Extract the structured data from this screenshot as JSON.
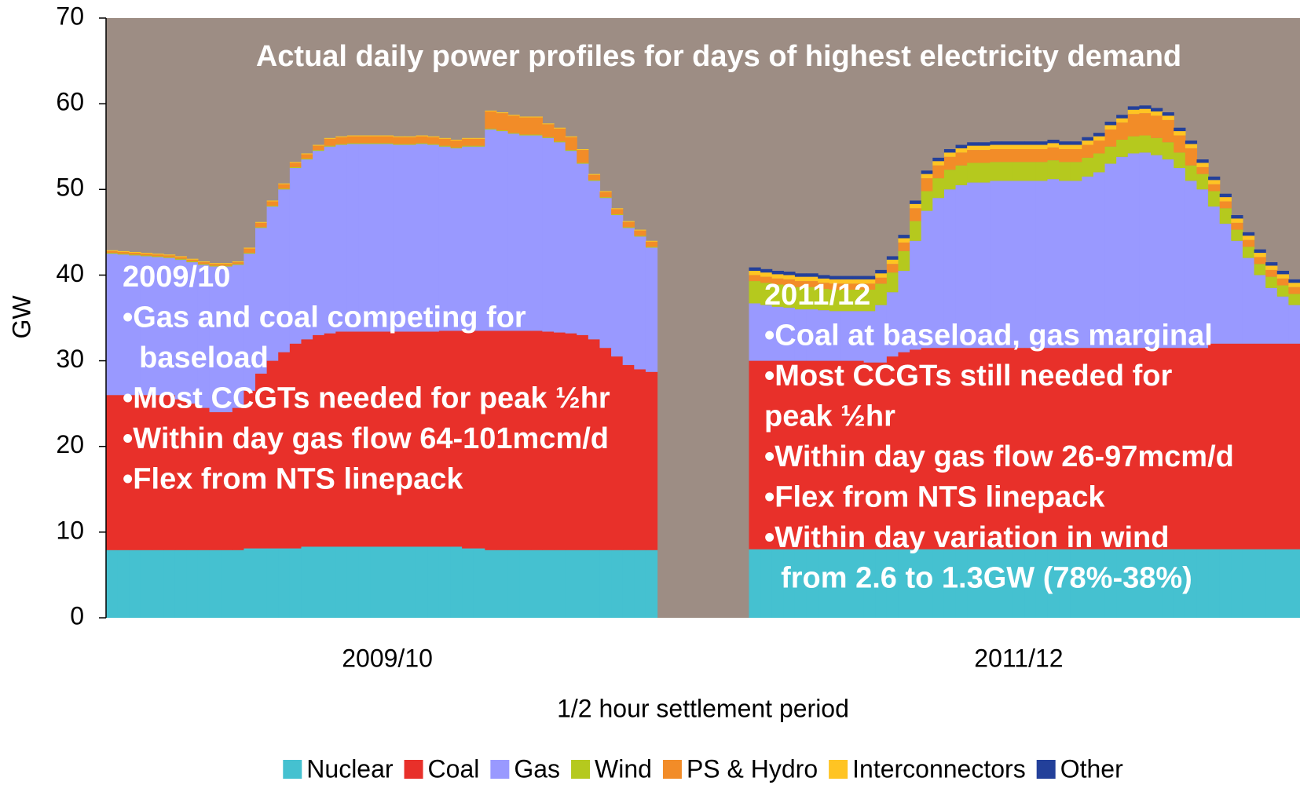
{
  "chart_data": {
    "type": "stacked_bar",
    "title": "Actual daily power profiles for days of highest electricity demand",
    "xlabel": "1/2 hour settlement period",
    "ylabel": "GW",
    "plot_background": "#9d8d84",
    "ylim": [
      0,
      70
    ],
    "yticks": [
      0,
      10,
      20,
      30,
      40,
      50,
      60,
      70
    ],
    "legend": "bottom",
    "categories": [
      null,
      null,
      null,
      null,
      null,
      null,
      null,
      null,
      null,
      null,
      null,
      null,
      null,
      null,
      null,
      null,
      null,
      null,
      null,
      null,
      null,
      null,
      null,
      null,
      "2009/10",
      null,
      null,
      null,
      null,
      null,
      null,
      null,
      null,
      null,
      null,
      null,
      null,
      null,
      null,
      null,
      null,
      null,
      null,
      null,
      null,
      null,
      null,
      null,
      null,
      null,
      null,
      null,
      null,
      null,
      null,
      null,
      null,
      null,
      null,
      null,
      null,
      null,
      null,
      null,
      null,
      null,
      null,
      null,
      null,
      null,
      null,
      null,
      null,
      null,
      null,
      null,
      null,
      null,
      null,
      "2011/12",
      null,
      null,
      null,
      null,
      null,
      null,
      null,
      null,
      null,
      null,
      null,
      null,
      null,
      null,
      null,
      null,
      null,
      null,
      null,
      null,
      null,
      null,
      null,
      null
    ],
    "series": [
      {
        "name": "Nuclear",
        "color": "#45c1d0",
        "values": [
          7.9,
          7.9,
          7.9,
          7.9,
          7.9,
          7.9,
          7.9,
          7.9,
          7.9,
          7.9,
          7.9,
          7.9,
          8.1,
          8.1,
          8.1,
          8.1,
          8.1,
          8.3,
          8.3,
          8.3,
          8.3,
          8.3,
          8.3,
          8.3,
          8.3,
          8.3,
          8.3,
          8.3,
          8.3,
          8.3,
          8.3,
          8.1,
          8.1,
          7.9,
          7.9,
          7.9,
          7.9,
          7.9,
          7.9,
          7.9,
          7.9,
          7.9,
          7.9,
          7.9,
          7.9,
          7.9,
          7.9,
          7.9,
          null,
          null,
          null,
          null,
          null,
          null,
          null,
          null,
          8,
          8,
          8,
          8,
          8,
          8,
          8,
          8,
          8,
          8,
          8,
          8,
          8,
          8,
          8,
          8,
          8,
          8,
          8,
          8,
          8,
          8,
          8,
          8,
          8,
          8,
          8,
          8,
          8,
          8,
          8,
          8,
          8,
          8,
          8,
          8,
          8,
          8,
          8,
          8,
          8,
          8,
          8,
          8,
          8,
          8,
          8,
          8
        ]
      },
      {
        "name": "Coal",
        "color": "#e8302a",
        "values": [
          18.1,
          18.1,
          18.1,
          18.1,
          18.1,
          18.1,
          17.6,
          17.1,
          16.6,
          16.1,
          16.1,
          16.6,
          18.4,
          20.4,
          21.9,
          22.9,
          23.9,
          24.2,
          24.7,
          24.9,
          25.1,
          25.1,
          25.1,
          25.1,
          25.1,
          25.1,
          25.1,
          25.1,
          25.1,
          25.2,
          25.2,
          25.4,
          25.4,
          25.6,
          25.6,
          25.6,
          25.6,
          25.6,
          25.5,
          25.4,
          25.3,
          25.1,
          24.6,
          23.6,
          22.6,
          21.6,
          21.1,
          20.8,
          null,
          null,
          null,
          null,
          null,
          null,
          null,
          null,
          22,
          22,
          22,
          22,
          22,
          22,
          22,
          22,
          22,
          22,
          21.8,
          21.8,
          22.5,
          23,
          23.3,
          23.5,
          23.5,
          23.5,
          23.5,
          23.5,
          23.5,
          23.5,
          23.5,
          23.5,
          23.5,
          23.5,
          23.5,
          23.5,
          23.5,
          23.5,
          23.5,
          23.5,
          23.5,
          23.5,
          23.5,
          23.5,
          23.5,
          23.5,
          23.5,
          23.5,
          24,
          24,
          24,
          24,
          24,
          24,
          24,
          24
        ]
      },
      {
        "name": "Gas",
        "color": "#9999ff",
        "values": [
          16.5,
          16.4,
          16.3,
          16.2,
          16.1,
          16,
          16.3,
          16.5,
          16.7,
          17,
          17,
          16.7,
          16,
          17,
          18,
          19,
          20.5,
          21,
          21.5,
          21.8,
          21.8,
          21.9,
          21.9,
          21.9,
          21.9,
          21.8,
          21.8,
          21.9,
          21.8,
          21.5,
          21.3,
          21.5,
          21.5,
          23.5,
          23.3,
          23,
          22.8,
          22.8,
          22.6,
          22.2,
          21.3,
          20,
          18.5,
          17.5,
          16.5,
          16,
          15.5,
          14.5,
          null,
          null,
          null,
          null,
          null,
          null,
          null,
          null,
          6.7,
          6.5,
          6.3,
          6.2,
          6,
          6,
          5.9,
          5.8,
          5.8,
          5.8,
          6,
          6.7,
          7.5,
          9.5,
          12.7,
          16,
          17.5,
          18.5,
          19,
          19.3,
          19.3,
          19.5,
          19.5,
          19.5,
          19.5,
          19.5,
          19.7,
          19.5,
          19.5,
          20,
          20.5,
          21.5,
          22.3,
          22.7,
          22.8,
          22.5,
          22,
          21,
          19.5,
          18.5,
          16,
          14,
          12,
          10,
          8,
          6.5,
          5.5,
          4.5
        ]
      },
      {
        "name": "Wind",
        "color": "#b5c91e",
        "values": [
          0.1,
          0.1,
          0.1,
          0.1,
          0.1,
          0.1,
          0.1,
          0.1,
          0.1,
          0.1,
          0.1,
          0.1,
          0.1,
          0.1,
          0.1,
          0.1,
          0.1,
          0.1,
          0.1,
          0.1,
          0.1,
          0.1,
          0.1,
          0.1,
          0.1,
          0.1,
          0.1,
          0.1,
          0.1,
          0.1,
          0.1,
          0.1,
          0.1,
          0.1,
          0.1,
          0.1,
          0.1,
          0.1,
          0.1,
          0.1,
          0.1,
          0.1,
          0.1,
          0.1,
          0.1,
          0.1,
          0.1,
          0.1,
          null,
          null,
          null,
          null,
          null,
          null,
          null,
          null,
          2.6,
          2.6,
          2.6,
          2.6,
          2.6,
          2.6,
          2.5,
          2.5,
          2.5,
          2.5,
          2.5,
          2.5,
          2.3,
          2.3,
          2.3,
          2.3,
          2.3,
          2.3,
          2.3,
          2.3,
          2.3,
          2.2,
          2.2,
          2.2,
          2.2,
          2.2,
          2.2,
          2.2,
          2.2,
          2.2,
          2.2,
          2,
          2,
          2,
          2,
          2,
          2,
          1.8,
          1.8,
          1.8,
          1.8,
          1.8,
          1.3,
          1.3,
          1.3,
          1.3,
          1.3,
          1.3
        ]
      },
      {
        "name": "PS & Hydro",
        "color": "#f28c28",
        "values": [
          0.2,
          0.2,
          0.2,
          0.2,
          0.2,
          0.2,
          0.2,
          0.2,
          0.2,
          0.2,
          0.2,
          0.2,
          0.5,
          0.5,
          0.5,
          0.5,
          0.5,
          0.5,
          0.5,
          0.8,
          0.8,
          0.8,
          0.8,
          0.8,
          0.8,
          0.8,
          0.8,
          0.8,
          0.8,
          0.8,
          0.8,
          0.8,
          0.8,
          2,
          2,
          2,
          2,
          2,
          1.5,
          1.5,
          1.5,
          1.5,
          0.6,
          0.6,
          0.6,
          0.6,
          0.6,
          0.6,
          null,
          null,
          null,
          null,
          null,
          null,
          null,
          null,
          0.7,
          0.7,
          0.7,
          0.7,
          0.7,
          0.7,
          0.7,
          0.7,
          0.7,
          0.7,
          0.7,
          0.7,
          1,
          1,
          1.5,
          1.5,
          1.5,
          1.5,
          1.5,
          1.5,
          1.5,
          1.5,
          1.5,
          1.5,
          1.5,
          1.5,
          1.5,
          1.5,
          1.5,
          1.5,
          1.5,
          2,
          2,
          2.6,
          2.6,
          2.6,
          2.6,
          2,
          2,
          0.8,
          0.8,
          0.8,
          0.8,
          0.8,
          0.8,
          0.8,
          0.8,
          0.8
        ]
      },
      {
        "name": "Interconnectors",
        "color": "#ffc423",
        "values": [
          0.1,
          0.1,
          0.1,
          0.1,
          0.1,
          0.1,
          0.1,
          0.1,
          0.1,
          0.1,
          0.1,
          0.1,
          0.1,
          0.1,
          0.1,
          0.1,
          0.1,
          0.1,
          0.1,
          0.1,
          0.1,
          0.1,
          0.1,
          0.1,
          0.1,
          0.1,
          0.1,
          0.1,
          0.1,
          0.1,
          0.1,
          0.1,
          0.1,
          0.1,
          0.1,
          0.1,
          0.1,
          0.1,
          0.1,
          0.1,
          0.1,
          0.1,
          0.1,
          0.1,
          0.1,
          0.1,
          0.1,
          0.1,
          null,
          null,
          null,
          null,
          null,
          null,
          null,
          null,
          0.5,
          0.5,
          0.5,
          0.5,
          0.5,
          0.5,
          0.5,
          0.5,
          0.5,
          0.5,
          0.5,
          0.5,
          0.5,
          0.5,
          0.5,
          0.5,
          0.5,
          0.5,
          0.5,
          0.5,
          0.5,
          0.5,
          0.5,
          0.5,
          0.5,
          0.5,
          0.5,
          0.5,
          0.5,
          0.5,
          0.5,
          0.5,
          0.5,
          0.5,
          0.5,
          0.5,
          0.5,
          0.5,
          0.5,
          0.5,
          0.5,
          0.5,
          0.5,
          0.5,
          0.5,
          0.5,
          0.5,
          0.5
        ]
      },
      {
        "name": "Other",
        "color": "#23409a",
        "values": [
          0,
          0,
          0,
          0,
          0,
          0,
          0,
          0,
          0,
          0,
          0,
          0,
          0,
          0,
          0,
          0,
          0,
          0,
          0,
          0,
          0,
          0,
          0,
          0,
          0,
          0,
          0,
          0,
          0,
          0,
          0,
          0,
          0,
          0,
          0,
          0,
          0,
          0,
          0,
          0,
          0,
          0,
          0,
          0,
          0,
          0,
          0,
          0,
          null,
          null,
          null,
          null,
          null,
          null,
          null,
          null,
          0.4,
          0.4,
          0.4,
          0.4,
          0.4,
          0.4,
          0.4,
          0.4,
          0.4,
          0.4,
          0.4,
          0.4,
          0.4,
          0.4,
          0.4,
          0.4,
          0.4,
          0.4,
          0.4,
          0.4,
          0.4,
          0.4,
          0.4,
          0.4,
          0.4,
          0.4,
          0.4,
          0.4,
          0.4,
          0.4,
          0.4,
          0.4,
          0.4,
          0.4,
          0.4,
          0.4,
          0.4,
          0.4,
          0.4,
          0.4,
          0.4,
          0.4,
          0.4,
          0.4,
          0.4,
          0.4,
          0.4,
          0.4
        ]
      }
    ],
    "annotations": [
      {
        "lines": [
          "2009/10",
          "•Gas and coal competing for",
          "  baseload",
          "•Most CCGTs needed for peak ½hr",
          "•Within day gas flow 64-101mcm/d",
          "•Flex from NTS linepack"
        ]
      },
      {
        "lines": [
          "2011/12",
          "•Coal at baseload, gas marginal",
          "•Most CCGTs still needed for",
          "peak ½hr",
          "•Within day gas flow 26-97mcm/d",
          "•Flex from NTS linepack",
          "•Within day variation in wind",
          "  from 2.6 to 1.3GW (78%-38%)"
        ]
      }
    ]
  }
}
